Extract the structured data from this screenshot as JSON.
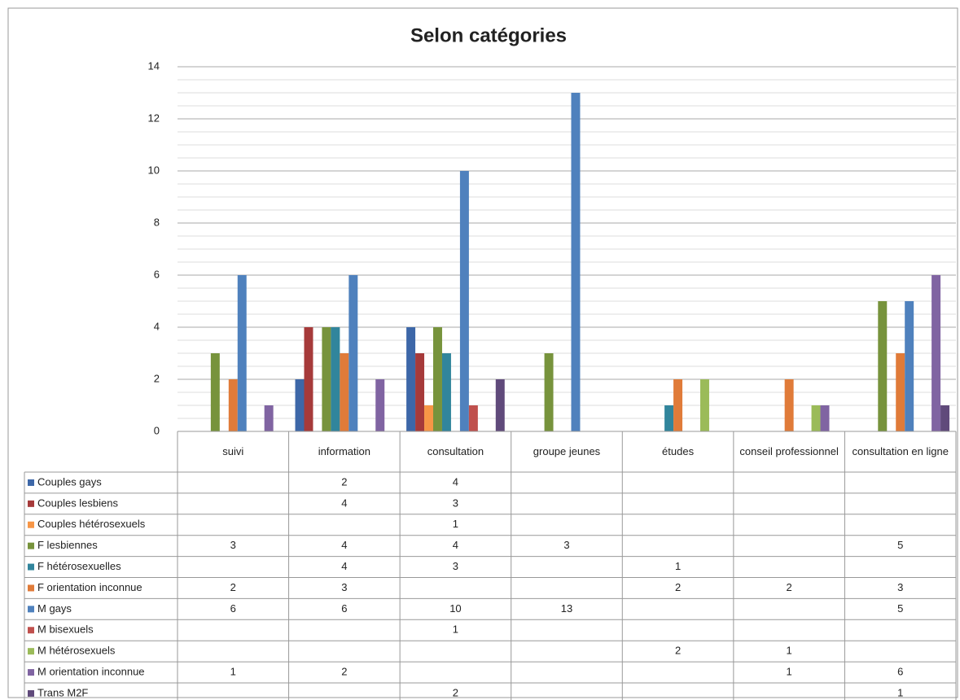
{
  "chart_data": {
    "type": "bar",
    "title": "Selon catégories",
    "categories": [
      "suivi",
      "information",
      "consultation",
      "groupe jeunes",
      "études",
      "conseil professionnel",
      "consultation en ligne"
    ],
    "series": [
      {
        "name": "Couples gays",
        "color": "#3d67a8",
        "values": [
          null,
          2,
          4,
          null,
          null,
          null,
          null
        ]
      },
      {
        "name": "Couples lesbiens",
        "color": "#a63a3a",
        "values": [
          null,
          4,
          3,
          null,
          null,
          null,
          null
        ]
      },
      {
        "name": "Couples hétérosexuels",
        "color": "#f79646",
        "values": [
          null,
          null,
          1,
          null,
          null,
          null,
          null
        ]
      },
      {
        "name": "F lesbiennes",
        "color": "#77933c",
        "values": [
          3,
          4,
          4,
          3,
          null,
          null,
          5
        ]
      },
      {
        "name": "F hétérosexuelles",
        "color": "#31859c",
        "values": [
          null,
          4,
          3,
          null,
          1,
          null,
          null
        ]
      },
      {
        "name": "F orientation inconnue",
        "color": "#e07b39",
        "values": [
          2,
          3,
          null,
          null,
          2,
          2,
          3
        ]
      },
      {
        "name": "M gays",
        "color": "#4f81bd",
        "values": [
          6,
          6,
          10,
          13,
          null,
          null,
          5
        ]
      },
      {
        "name": "M bisexuels",
        "color": "#c0504d",
        "values": [
          null,
          null,
          1,
          null,
          null,
          null,
          null
        ]
      },
      {
        "name": "M hétérosexuels",
        "color": "#9bbb59",
        "values": [
          null,
          null,
          null,
          null,
          2,
          1,
          null
        ]
      },
      {
        "name": "M orientation inconnue",
        "color": "#8064a2",
        "values": [
          1,
          2,
          null,
          null,
          null,
          1,
          6
        ]
      },
      {
        "name": "Trans M2F",
        "color": "#604a7b",
        "values": [
          null,
          null,
          2,
          null,
          null,
          null,
          1
        ]
      }
    ],
    "ylim": [
      0,
      14
    ],
    "yticks": [
      0,
      2,
      4,
      6,
      8,
      10,
      12,
      14
    ],
    "grid": true,
    "minor_grid": 0.5,
    "legend": "table"
  }
}
